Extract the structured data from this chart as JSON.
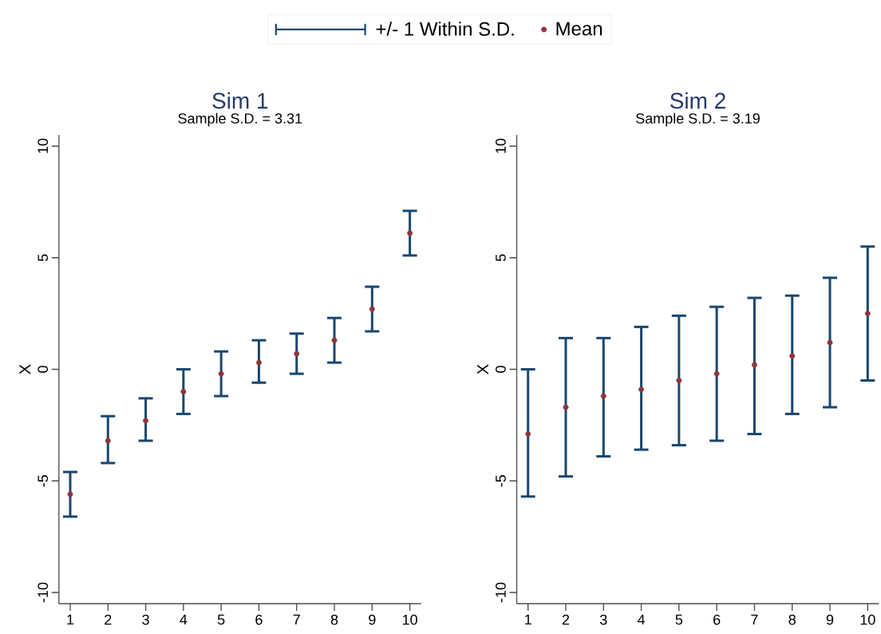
{
  "chart_data": [
    {
      "type": "scatter",
      "title": "Sim 1",
      "subtitle": "Sample S.D. = 3.31",
      "ylabel": "X",
      "legend": "top",
      "annotations": [
        "+/- 1 Within S.D."
      ],
      "x": [
        1,
        2,
        3,
        4,
        5,
        6,
        7,
        8,
        9,
        10
      ],
      "xlim": [
        0.7,
        10.3
      ],
      "xticks": [
        1,
        2,
        3,
        4,
        5,
        6,
        7,
        8,
        9,
        10
      ],
      "ylim": [
        -10.5,
        10.5
      ],
      "yticks": [
        -10,
        -5,
        0,
        5,
        10
      ],
      "series": [
        {
          "name": "Mean",
          "color": "#90353b",
          "marker": "circle",
          "values": [
            -5.6,
            -3.2,
            -2.3,
            -1.0,
            -0.2,
            0.3,
            0.7,
            1.3,
            2.7,
            6.1
          ],
          "errors": [
            [
              -6.6,
              -4.6
            ],
            [
              -4.2,
              -2.1
            ],
            [
              -3.2,
              -1.3
            ],
            [
              -2.0,
              0.0
            ],
            [
              -1.2,
              0.8
            ],
            [
              -0.6,
              1.3
            ],
            [
              -0.2,
              1.6
            ],
            [
              0.3,
              2.3
            ],
            [
              1.7,
              3.7
            ],
            [
              5.1,
              7.1
            ]
          ]
        }
      ]
    },
    {
      "type": "scatter",
      "title": "Sim 2",
      "subtitle": "Sample S.D. = 3.19",
      "ylabel": "X",
      "x": [
        1,
        2,
        3,
        4,
        5,
        6,
        7,
        8,
        9,
        10
      ],
      "xlim": [
        0.7,
        10.3
      ],
      "xticks": [
        1,
        2,
        3,
        4,
        5,
        6,
        7,
        8,
        9,
        10
      ],
      "ylim": [
        -10.5,
        10.5
      ],
      "yticks": [
        -10,
        -5,
        0,
        5,
        10
      ],
      "series": [
        {
          "color": "#90353b",
          "marker": "circle",
          "values": [
            -2.9,
            -1.7,
            -1.2,
            -0.9,
            -0.5,
            -0.2,
            0.2,
            0.6,
            1.2,
            2.5
          ],
          "errors": [
            [
              -5.7,
              0.0
            ],
            [
              -4.8,
              1.4
            ],
            [
              -3.9,
              1.4
            ],
            [
              -3.6,
              1.9
            ],
            [
              -3.4,
              2.4
            ],
            [
              -3.2,
              2.8
            ],
            [
              -2.9,
              3.2
            ],
            [
              -2.0,
              3.3
            ],
            [
              -1.7,
              4.1
            ],
            [
              -0.5,
              5.5
            ]
          ]
        }
      ]
    }
  ]
}
